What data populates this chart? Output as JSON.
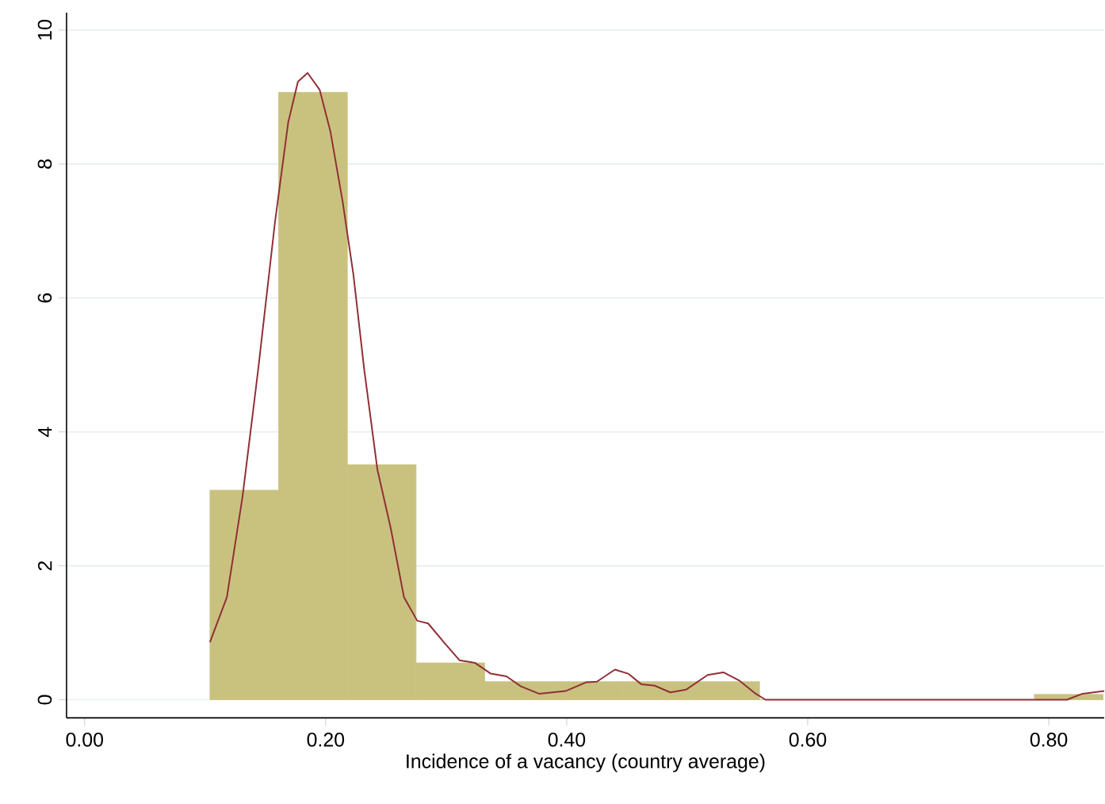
{
  "chart_data": {
    "type": "histogram",
    "xlabel": "Incidence of a vacancy (country average)",
    "xlim": [
      -0.015,
      0.846
    ],
    "ylim": [
      -0.27,
      10.26
    ],
    "xticks": [
      {
        "value": 0,
        "label": "0.00"
      },
      {
        "value": 0.2,
        "label": "0.20"
      },
      {
        "value": 0.4,
        "label": "0.40"
      },
      {
        "value": 0.6,
        "label": "0.60"
      },
      {
        "value": 0.8,
        "label": "0.80"
      }
    ],
    "yticks": [
      0,
      2,
      4,
      6,
      8,
      10
    ],
    "grid": "y",
    "series": [
      {
        "color": "#c9c27f",
        "bins": [
          0.104,
          0.161,
          0.218,
          0.275,
          0.332,
          0.389,
          0.446,
          0.503,
          0.56,
          0.617,
          0.674,
          0.731,
          0.788,
          0.845
        ],
        "values": [
          3.13,
          9.07,
          3.51,
          0.55,
          0.27,
          0.27,
          0.27,
          0.27,
          0,
          0,
          0,
          0,
          0.08
        ]
      },
      {
        "type": "line",
        "color": "#902f36",
        "x": [
          0.104,
          0.118,
          0.131,
          0.144,
          0.158,
          0.169,
          0.177,
          0.185,
          0.195,
          0.204,
          0.214,
          0.223,
          0.232,
          0.243,
          0.254,
          0.265,
          0.276,
          0.285,
          0.298,
          0.311,
          0.324,
          0.337,
          0.35,
          0.362,
          0.377,
          0.399,
          0.416,
          0.425,
          0.44,
          0.451,
          0.462,
          0.473,
          0.486,
          0.499,
          0.517,
          0.53,
          0.543,
          0.556,
          0.565,
          0.815,
          0.828,
          0.846
        ],
        "values": [
          0.86,
          1.53,
          3.03,
          4.93,
          7.14,
          8.63,
          9.23,
          9.36,
          9.11,
          8.48,
          7.45,
          6.35,
          4.93,
          3.43,
          2.56,
          1.53,
          1.18,
          1.14,
          0.86,
          0.59,
          0.55,
          0.39,
          0.35,
          0.2,
          0.09,
          0.13,
          0.26,
          0.27,
          0.45,
          0.39,
          0.23,
          0.21,
          0.11,
          0.15,
          0.37,
          0.41,
          0.29,
          0.1,
          0,
          0,
          0.09,
          0.13
        ]
      }
    ]
  }
}
